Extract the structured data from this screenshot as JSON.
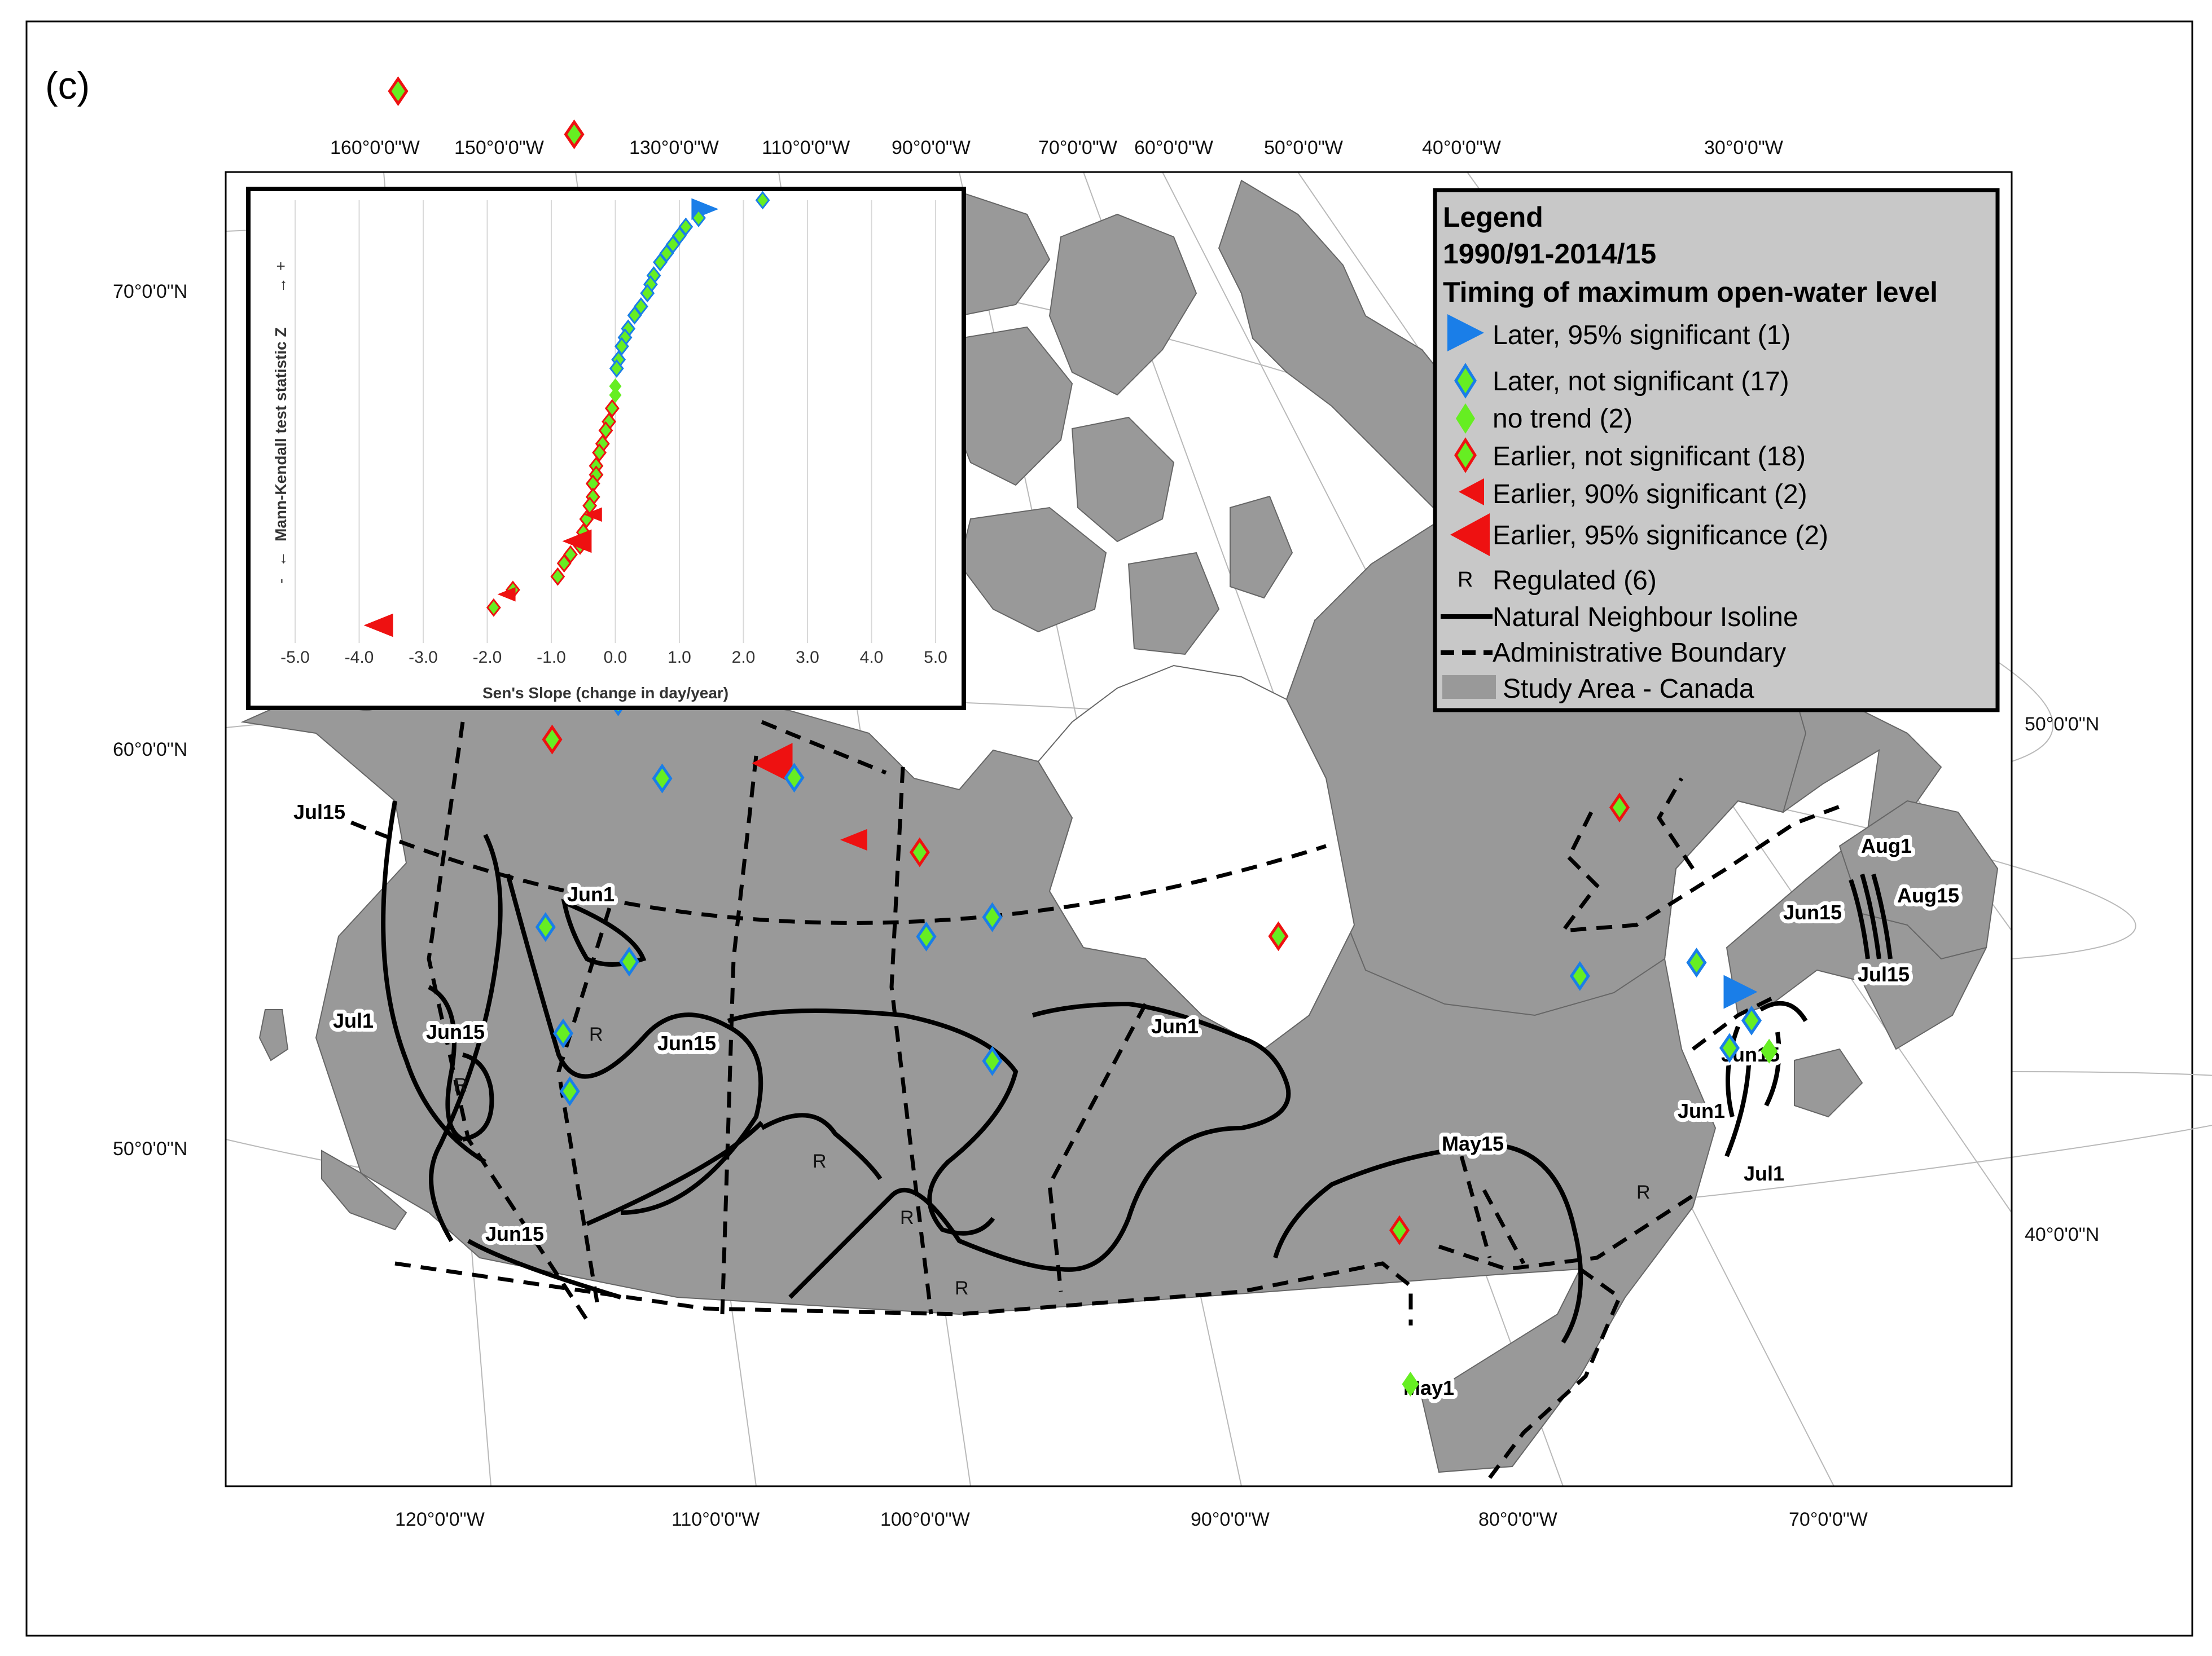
{
  "panel_label": "(c)",
  "graticule": {
    "top_labels": [
      "160°0'0\"W",
      "150°0'0\"W",
      "130°0'0\"W",
      "110°0'0\"W",
      "90°0'0\"W",
      "70°0'0\"W",
      "60°0'0\"W",
      "50°0'0\"W",
      "40°0'0\"W",
      "30°0'0\"W"
    ],
    "bottom_labels": [
      "120°0'0\"W",
      "110°0'0\"W",
      "100°0'0\"W",
      "90°0'0\"W",
      "80°0'0\"W",
      "70°0'0\"W"
    ],
    "left_labels": [
      "70°0'0\"N",
      "60°0'0\"N",
      "50°0'0\"N"
    ],
    "right_labels": [
      "50°0'0\"N",
      "40°0'0\"N"
    ]
  },
  "legend": {
    "title": "Legend",
    "period": "1990/91-2014/15",
    "subtitle": "Timing of maximum open-water level",
    "items": [
      {
        "symbol": "blue-triangle-large",
        "label": "Later, 95% significant (1)"
      },
      {
        "symbol": "blue-diamond",
        "label": "Later,  not significant (17)"
      },
      {
        "symbol": "green-diamond",
        "label": "no trend (2)"
      },
      {
        "symbol": "red-diamond",
        "label": "Earlier, not significant (18)"
      },
      {
        "symbol": "red-triangle-small",
        "label": "Earlier, 90% significant (2)"
      },
      {
        "symbol": "red-triangle-large",
        "label": "Earlier, 95% significance (2)"
      },
      {
        "symbol": "regulated-r",
        "label": "Regulated (6)",
        "glyph": "R"
      },
      {
        "symbol": "solid-line",
        "label": "Natural Neighbour Isoline"
      },
      {
        "symbol": "dashed-line",
        "label": "Administrative Boundary"
      },
      {
        "symbol": "gray-box",
        "label": "Study Area - Canada"
      }
    ]
  },
  "contour_labels": [
    "Jul15",
    "Jun1",
    "Jul1",
    "Jun15",
    "Jun15",
    "Jun1",
    "May15",
    "Jun15",
    "May1",
    "Aug1",
    "Jun15",
    "Aug15",
    "Jul15",
    "Jun15",
    "Jun1",
    "Jul1"
  ],
  "regulated_marker": "R",
  "colors": {
    "land": "#999999",
    "water": "#ffffff",
    "later_blue": "#1a7ee8",
    "no_trend_green": "#66ee22",
    "earlier_red": "#ee1111",
    "legend_bg": "#c8c8c8"
  },
  "chart_data": {
    "type": "scatter",
    "title": "",
    "xlabel": "Sen's Slope (change in day/year)",
    "ylabel": "Mann-Kendall test statistic Z",
    "y_minus_label": "-",
    "y_plus_label": "+",
    "xlim": [
      -5.0,
      5.0
    ],
    "x_ticks": [
      "-5.0",
      "-4.0",
      "-3.0",
      "-2.0",
      "-1.0",
      "0.0",
      "1.0",
      "2.0",
      "3.0",
      "4.0",
      "5.0"
    ],
    "grid": "vertical",
    "series": [
      {
        "name": "Later, 95% significant",
        "marker": "triangle-right",
        "color": "#1a7ee8",
        "points": [
          [
            1.4,
            0.98
          ]
        ]
      },
      {
        "name": "Later, not significant",
        "marker": "diamond",
        "color": "#1a7ee8",
        "points": [
          [
            2.3,
            1.0
          ],
          [
            1.3,
            0.96
          ],
          [
            1.1,
            0.94
          ],
          [
            1.0,
            0.92
          ],
          [
            0.9,
            0.9
          ],
          [
            0.8,
            0.88
          ],
          [
            0.7,
            0.86
          ],
          [
            0.6,
            0.83
          ],
          [
            0.55,
            0.81
          ],
          [
            0.5,
            0.79
          ],
          [
            0.4,
            0.76
          ],
          [
            0.3,
            0.74
          ],
          [
            0.2,
            0.71
          ],
          [
            0.15,
            0.69
          ],
          [
            0.1,
            0.67
          ],
          [
            0.05,
            0.64
          ],
          [
            0.02,
            0.62
          ]
        ]
      },
      {
        "name": "no trend",
        "marker": "diamond",
        "color": "#66ee22",
        "points": [
          [
            0.0,
            0.58
          ],
          [
            0.0,
            0.56
          ]
        ]
      },
      {
        "name": "Earlier, not significant",
        "marker": "diamond",
        "color": "#ee1111",
        "points": [
          [
            -0.05,
            0.53
          ],
          [
            -0.1,
            0.5
          ],
          [
            -0.15,
            0.48
          ],
          [
            -0.2,
            0.45
          ],
          [
            -0.25,
            0.43
          ],
          [
            -0.3,
            0.4
          ],
          [
            -0.3,
            0.38
          ],
          [
            -0.35,
            0.36
          ],
          [
            -0.35,
            0.33
          ],
          [
            -0.4,
            0.31
          ],
          [
            -0.45,
            0.28
          ],
          [
            -0.5,
            0.25
          ],
          [
            -0.55,
            0.22
          ],
          [
            -0.7,
            0.2
          ],
          [
            -0.8,
            0.18
          ],
          [
            -0.9,
            0.15
          ],
          [
            -1.6,
            0.12
          ],
          [
            -1.9,
            0.08
          ]
        ]
      },
      {
        "name": "Earlier, 90% significant",
        "marker": "triangle-left",
        "color": "#ee1111",
        "points": [
          [
            -0.35,
            0.29
          ],
          [
            -1.7,
            0.11
          ]
        ]
      },
      {
        "name": "Earlier, 95% significance",
        "marker": "triangle-left-large",
        "color": "#ee1111",
        "points": [
          [
            -0.6,
            0.23
          ],
          [
            -3.7,
            0.04
          ]
        ]
      }
    ]
  },
  "map_markers": [
    {
      "kind": "red-diamond",
      "lon": -125.5,
      "lat": 60.3
    },
    {
      "kind": "red-diamond",
      "lon": -117.5,
      "lat": 59.3
    },
    {
      "kind": "red-diamond",
      "lon": -112.5,
      "lat": 56.2
    },
    {
      "kind": "red-triangle-large",
      "lon": -119.5,
      "lat": 55.5
    },
    {
      "kind": "blue-diamond",
      "lon": -118.5,
      "lat": 54.5
    },
    {
      "kind": "red-diamond",
      "lon": -114.5,
      "lat": 54.2
    },
    {
      "kind": "red-diamond",
      "lon": -114.5,
      "lat": 53.2
    },
    {
      "kind": "blue-diamond",
      "lon": -115.5,
      "lat": 52.5
    },
    {
      "kind": "blue-diamond",
      "lon": -113.5,
      "lat": 51.5
    },
    {
      "kind": "red-diamond",
      "lon": -118.5,
      "lat": 52.2
    },
    {
      "kind": "blue-diamond",
      "lon": -118.8,
      "lat": 50.0
    },
    {
      "kind": "blue-diamond",
      "lon": -115.0,
      "lat": 49.4
    },
    {
      "kind": "blue-diamond",
      "lon": -118.0,
      "lat": 48.7
    },
    {
      "kind": "blue-diamond",
      "lon": -117.7,
      "lat": 48.0
    },
    {
      "kind": "red-triangle-large",
      "lon": -108.5,
      "lat": 51.5
    },
    {
      "kind": "blue-diamond",
      "lon": -107.5,
      "lat": 51.3
    },
    {
      "kind": "red-diamond",
      "lon": -105.3,
      "lat": 52.5
    },
    {
      "kind": "red-triangle-small",
      "lon": -104.8,
      "lat": 50.5
    },
    {
      "kind": "red-diamond",
      "lon": -101.8,
      "lat": 50.3
    },
    {
      "kind": "blue-diamond",
      "lon": -101.5,
      "lat": 49.3
    },
    {
      "kind": "blue-diamond",
      "lon": -98.5,
      "lat": 49.5
    },
    {
      "kind": "blue-diamond",
      "lon": -98.5,
      "lat": 47.8
    },
    {
      "kind": "red-diamond",
      "lon": -85.5,
      "lat": 49.4
    },
    {
      "kind": "red-diamond",
      "lon": -80.0,
      "lat": 46.1
    },
    {
      "kind": "green-diamond",
      "lon": -79.5,
      "lat": 44.3
    },
    {
      "kind": "blue-diamond",
      "lon": -71.8,
      "lat": 49.5
    },
    {
      "kind": "red-diamond",
      "lon": -70.0,
      "lat": 51.6
    },
    {
      "kind": "red-diamond",
      "lon": -68.0,
      "lat": 55.5
    },
    {
      "kind": "red-diamond",
      "lon": -66.0,
      "lat": 57.5
    },
    {
      "kind": "red-diamond",
      "lon": -64.0,
      "lat": 58.3
    },
    {
      "kind": "red-triangle-small",
      "lon": -65.0,
      "lat": 54.5
    },
    {
      "kind": "green-diamond",
      "lon": -62.0,
      "lat": 54.0
    },
    {
      "kind": "blue-diamond",
      "lon": -66.5,
      "lat": 50.0
    },
    {
      "kind": "blue-triangle-large",
      "lon": -64.5,
      "lat": 49.8
    },
    {
      "kind": "blue-diamond",
      "lon": -64.0,
      "lat": 49.5
    },
    {
      "kind": "green-diamond",
      "lon": -63.2,
      "lat": 49.2
    },
    {
      "kind": "blue-diamond",
      "lon": -65.0,
      "lat": 49.1
    }
  ]
}
